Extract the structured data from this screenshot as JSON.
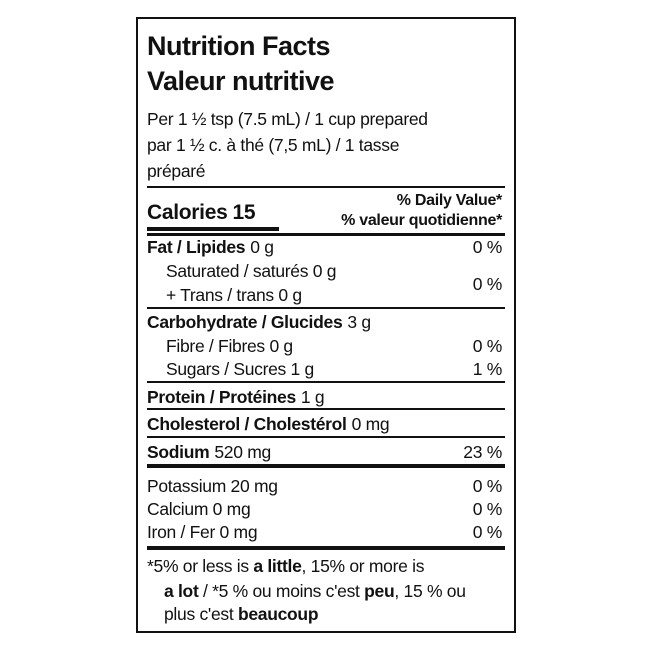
{
  "label": {
    "title_en": "Nutrition Facts",
    "title_fr": "Valeur nutritive",
    "serving": [
      "Per 1 ½ tsp (7.5 mL) / 1 cup prepared",
      "par 1 ½ c. à thé (7,5 mL) / 1 tasse",
      "préparé"
    ],
    "calories": {
      "label": "Calories",
      "value": "15"
    },
    "dv_header": [
      "% Daily Value*",
      "% valeur quotidienne*"
    ],
    "fat": {
      "label": "Fat / Lipides",
      "amount": "0 g",
      "dv": "0 %"
    },
    "saturated_trans": {
      "lines": [
        "Saturated / saturés 0 g",
        "+ Trans / trans 0 g"
      ],
      "dv": "0 %"
    },
    "carbohydrate": {
      "label": "Carbohydrate / Glucides",
      "amount": "3 g"
    },
    "fibre": {
      "text": "Fibre / Fibres 0 g",
      "dv": "0 %"
    },
    "sugars": {
      "text": "Sugars / Sucres 1 g",
      "dv": "1 %"
    },
    "protein": {
      "label": "Protein / Protéines",
      "amount": "1 g"
    },
    "cholesterol": {
      "label": "Cholesterol / Cholestérol",
      "amount": "0 mg"
    },
    "sodium": {
      "label": "Sodium",
      "amount": "520 mg",
      "dv": "23 %"
    },
    "minerals": [
      {
        "text": "Potassium 20 mg",
        "dv": "0 %"
      },
      {
        "text": "Calcium 0 mg",
        "dv": "0 %"
      },
      {
        "text": "Iron / Fer 0 mg",
        "dv": "0 %"
      }
    ],
    "footnote": [
      "*5% or less is",
      "a little",
      ", 15% or more is",
      "a lot",
      "/ *5 % ou moins c'est",
      "peu",
      ", 15 % ou",
      "plus c'est",
      "beaucoup"
    ]
  }
}
